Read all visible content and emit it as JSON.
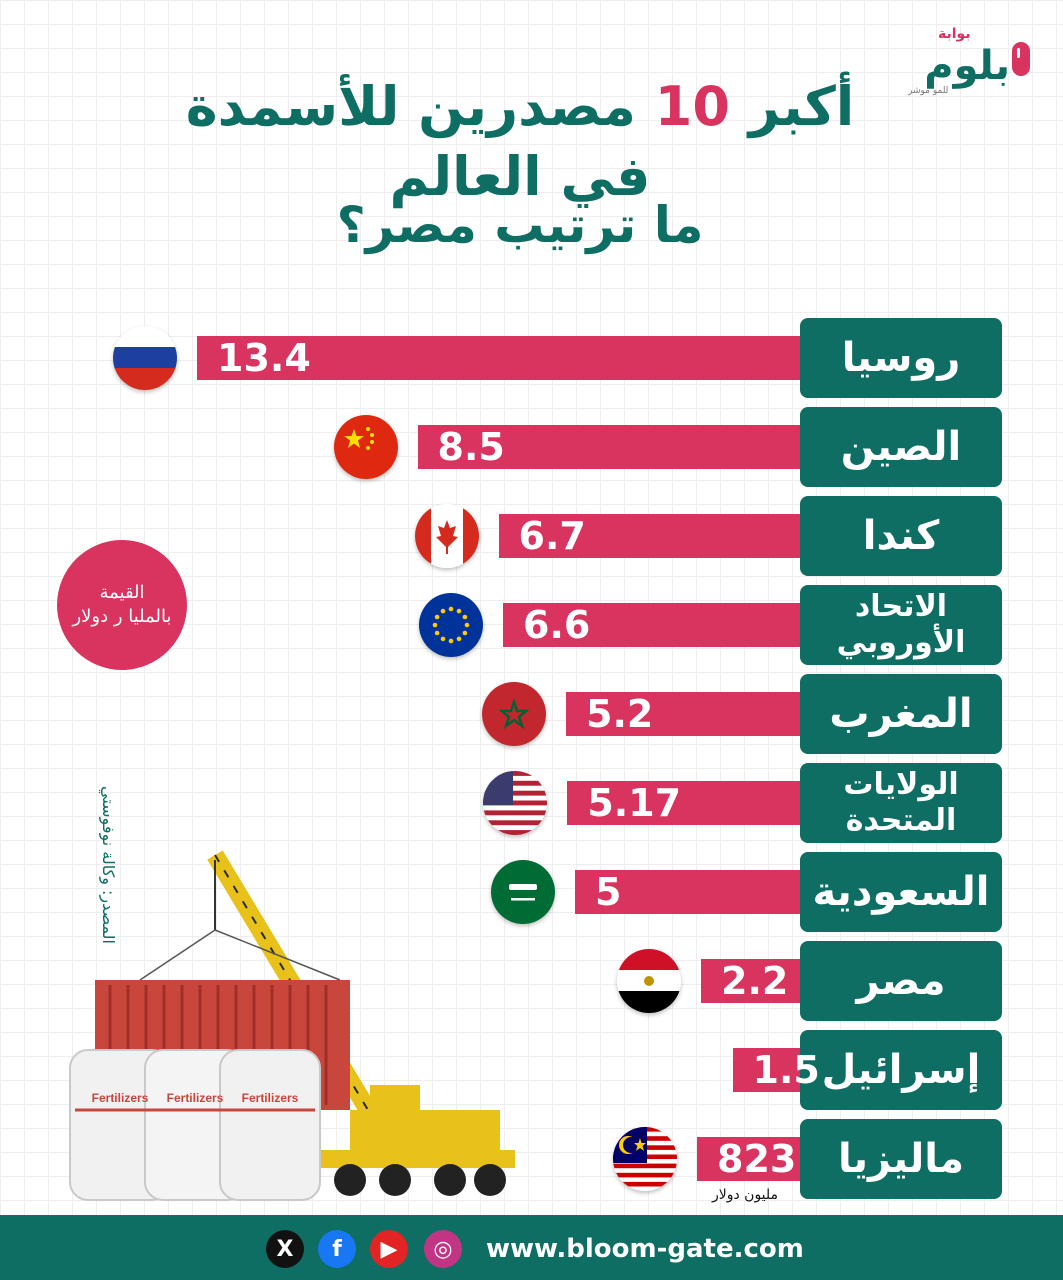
{
  "brand": {
    "top_word": "بوابة",
    "word": "بلوم",
    "tagline": "للمو موشر",
    "website": "www.bloom-gate.com"
  },
  "title_part1": "أكبر",
  "title_number": "10",
  "title_part2": "مصدرين للأسمدة في العالم",
  "subtitle": "ما ترتيب مصر؟",
  "unit_note": {
    "line1": "القيمة",
    "line2": "بالمليا ر دولار"
  },
  "source": "المصدر: وكالة نوفوستي",
  "million_unit": "مليون دولار",
  "illustration_labels": [
    "Fertilizers",
    "Fertilizers",
    "Fertilizers"
  ],
  "social_icons": [
    "x-icon",
    "facebook-icon",
    "youtube-icon",
    "instagram-icon"
  ],
  "colors": {
    "teal": "#0f6e63",
    "pink": "#d9335f"
  },
  "chart_data": {
    "type": "bar",
    "orientation": "horizontal",
    "categories": [
      "روسيا",
      "الصين",
      "كندا",
      "الاتحاد الأوروبي",
      "المغرب",
      "الولايات المتحدة",
      "السعودية",
      "مصر",
      "إسرائيل",
      "ماليزيا"
    ],
    "values": [
      13.4,
      8.5,
      6.7,
      6.6,
      5.2,
      5.17,
      5,
      2.2,
      1.5,
      0.823
    ],
    "labels": [
      "13.4",
      "8.5",
      "6.7",
      "6.6",
      "5.2",
      "5.17",
      "5",
      "2.2",
      "1.5",
      "823"
    ],
    "unit": "بالمليا ر دولار",
    "flags": [
      "russia",
      "china",
      "canada",
      "eu",
      "morocco",
      "usa",
      "saudi-arabia",
      "egypt",
      "israel",
      "malaysia"
    ]
  }
}
